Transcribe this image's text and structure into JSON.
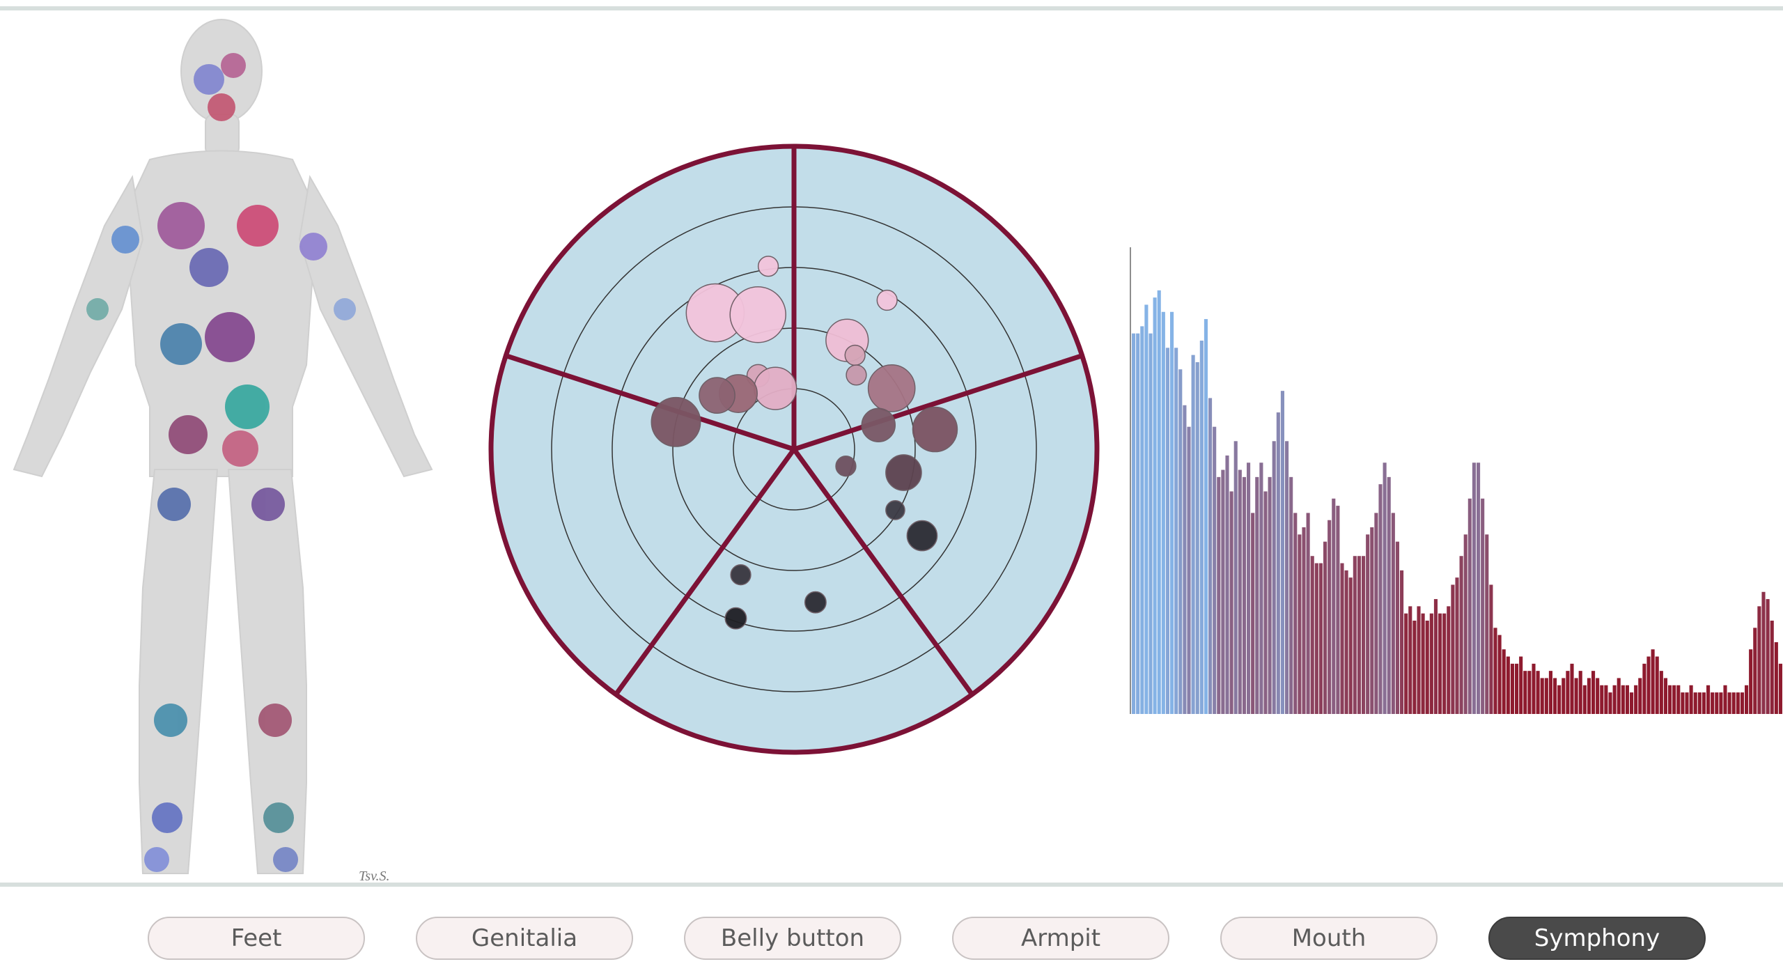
{
  "colors": {
    "frame": "#d7dfdd",
    "radial_fill": "#c2dde9",
    "radial_stroke": "#7c1236",
    "ring_stroke": "#333333",
    "tab_bg": "#f8f1f1",
    "tab_active_bg": "#4a4a4a",
    "bar_blue": "#85b3e6",
    "bar_red": "#8e1a2e"
  },
  "signature": "Tsv.S.",
  "tabs": [
    {
      "label": "Feet",
      "active": false
    },
    {
      "label": "Genitalia",
      "active": false
    },
    {
      "label": "Belly button",
      "active": false
    },
    {
      "label": "Armpit",
      "active": false
    },
    {
      "label": "Mouth",
      "active": false
    },
    {
      "label": "Symphony",
      "active": true
    }
  ],
  "chart_data": [
    {
      "type": "scatter",
      "sectors": 5,
      "rings": 4,
      "points": [
        {
          "angle": 330,
          "radius": 2.6,
          "size": 2.6,
          "color": "#f3c4dc"
        },
        {
          "angle": 345,
          "radius": 2.3,
          "size": 2.5,
          "color": "#f3c4dc"
        },
        {
          "angle": 352,
          "radius": 3.05,
          "size": 0.9,
          "color": "#f3c4dc"
        },
        {
          "angle": 334,
          "radius": 1.35,
          "size": 1.0,
          "color": "#d8a4b8"
        },
        {
          "angle": 343,
          "radius": 1.05,
          "size": 1.9,
          "color": "#e3aec6"
        },
        {
          "angle": 315,
          "radius": 1.3,
          "size": 1.7,
          "color": "#9a6876"
        },
        {
          "angle": 305,
          "radius": 1.55,
          "size": 1.6,
          "color": "#8d6372"
        },
        {
          "angle": 26,
          "radius": 2.0,
          "size": 1.9,
          "color": "#f0bed5"
        },
        {
          "angle": 33,
          "radius": 1.85,
          "size": 0.9,
          "color": "#d5a5b7"
        },
        {
          "angle": 40,
          "radius": 1.6,
          "size": 0.9,
          "color": "#c798ab"
        },
        {
          "angle": 32,
          "radius": 2.9,
          "size": 0.9,
          "color": "#f3c4dc"
        },
        {
          "angle": 58,
          "radius": 1.9,
          "size": 2.1,
          "color": "#a67485"
        },
        {
          "angle": 74,
          "radius": 1.45,
          "size": 1.5,
          "color": "#7a5866"
        },
        {
          "angle": 82,
          "radius": 2.35,
          "size": 2.0,
          "color": "#7c5363"
        },
        {
          "angle": 108,
          "radius": 0.9,
          "size": 0.9,
          "color": "#6e5060"
        },
        {
          "angle": 102,
          "radius": 1.85,
          "size": 1.6,
          "color": "#5d4350"
        },
        {
          "angle": 121,
          "radius": 1.95,
          "size": 0.85,
          "color": "#3c3a44"
        },
        {
          "angle": 124,
          "radius": 2.55,
          "size": 1.35,
          "color": "#2c2b33"
        },
        {
          "angle": 172,
          "radius": 2.55,
          "size": 0.95,
          "color": "#2c2b33"
        },
        {
          "angle": 203,
          "radius": 2.25,
          "size": 0.9,
          "color": "#39363f"
        },
        {
          "angle": 199,
          "radius": 2.95,
          "size": 0.95,
          "color": "#1f1f24"
        },
        {
          "angle": 283,
          "radius": 2.0,
          "size": 2.2,
          "color": "#7b5664"
        }
      ]
    },
    {
      "type": "bar",
      "values": [
        53,
        53,
        54,
        57,
        53,
        58,
        59,
        56,
        51,
        56,
        51,
        48,
        43,
        40,
        50,
        49,
        52,
        55,
        44,
        40,
        33,
        34,
        36,
        31,
        38,
        34,
        33,
        35,
        28,
        33,
        35,
        31,
        33,
        38,
        42,
        45,
        38,
        33,
        28,
        25,
        26,
        28,
        22,
        21,
        21,
        24,
        27,
        30,
        29,
        21,
        20,
        19,
        22,
        22,
        22,
        25,
        26,
        28,
        32,
        35,
        33,
        28,
        24,
        20,
        14,
        15,
        13,
        15,
        14,
        13,
        14,
        16,
        14,
        14,
        15,
        18,
        19,
        22,
        25,
        30,
        35,
        35,
        30,
        25,
        18,
        12,
        11,
        9,
        8,
        7,
        7,
        8,
        6,
        6,
        7,
        6,
        5,
        5,
        6,
        5,
        4,
        5,
        6,
        7,
        5,
        6,
        4,
        5,
        6,
        5,
        4,
        4,
        3,
        4,
        5,
        4,
        4,
        3,
        4,
        5,
        7,
        8,
        9,
        8,
        6,
        5,
        4,
        4,
        4,
        3,
        3,
        4,
        3,
        3,
        3,
        4,
        3,
        3,
        3,
        4,
        3,
        3,
        3,
        3,
        4,
        9,
        12,
        15,
        17,
        16,
        13,
        10,
        7
      ],
      "ylim": [
        0,
        65
      ]
    }
  ]
}
